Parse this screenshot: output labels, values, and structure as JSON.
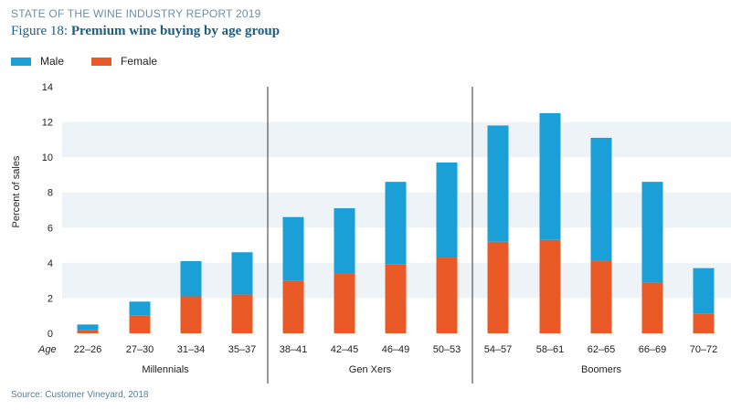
{
  "header": {
    "report": "STATE OF THE WINE INDUSTRY REPORT 2019",
    "figure_number": "Figure 18:",
    "figure_name": "Premium wine buying by age group"
  },
  "source": "Source: Customer Vineyard, 2018",
  "colors": {
    "male": "#1a9fd6",
    "female": "#ea5a27",
    "band": "#eef3f7",
    "divider": "#333333"
  },
  "chart_data": {
    "type": "bar",
    "stacked": true,
    "title": "Premium wine buying by age group",
    "ylabel": "Percent of sales",
    "xlabel": "Age",
    "ylim": [
      0,
      14
    ],
    "yticks": [
      0,
      2,
      4,
      6,
      8,
      10,
      12,
      14
    ],
    "categories": [
      "22–26",
      "27–30",
      "31–34",
      "35–37",
      "38–41",
      "42–45",
      "46–49",
      "50–53",
      "54–57",
      "58–61",
      "62–65",
      "66–69",
      "70–72"
    ],
    "groups": [
      {
        "name": "Millennials",
        "count": 4
      },
      {
        "name": "Gen Xers",
        "count": 4
      },
      {
        "name": "Boomers",
        "count": 5
      }
    ],
    "series": [
      {
        "name": "Female",
        "values": [
          0.2,
          1.0,
          2.1,
          2.2,
          3.0,
          3.4,
          3.9,
          4.3,
          5.2,
          5.3,
          4.1,
          2.9,
          1.1
        ]
      },
      {
        "name": "Male",
        "values": [
          0.3,
          0.8,
          2.0,
          2.4,
          3.6,
          3.7,
          4.7,
          5.4,
          6.6,
          7.2,
          7.0,
          5.7,
          2.6
        ]
      }
    ],
    "legend": [
      "Male",
      "Female"
    ],
    "legend_position": "top-left"
  }
}
